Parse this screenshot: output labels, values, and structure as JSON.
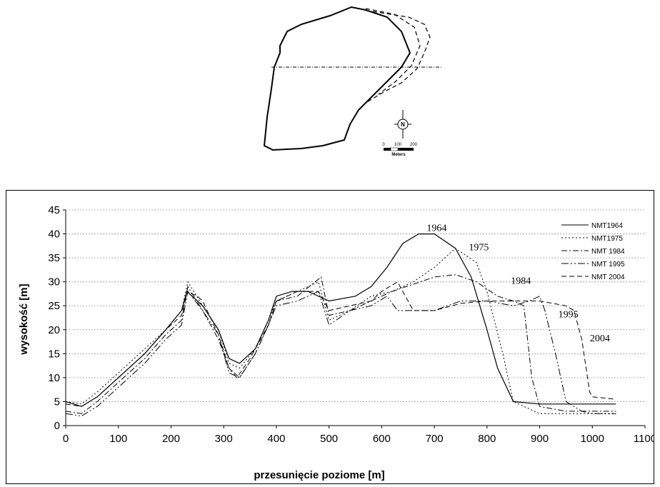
{
  "map": {
    "scale_labels": [
      "0",
      "100",
      "200"
    ],
    "scale_unit": "Meters",
    "north_label": "N"
  },
  "chart_data": {
    "type": "line",
    "xlabel": "przesunięcie poziome [m]",
    "ylabel": "wysokość [m]",
    "xlim": [
      0,
      1100
    ],
    "ylim": [
      0,
      45
    ],
    "xticks": [
      0,
      100,
      200,
      300,
      400,
      500,
      600,
      700,
      800,
      900,
      1000,
      1100
    ],
    "yticks": [
      0,
      5,
      10,
      15,
      20,
      25,
      30,
      35,
      40,
      45
    ],
    "grid": "horizontal dotted",
    "legend_position": "top-right",
    "series": [
      {
        "name": "NMT1964",
        "label": "1964",
        "dash": "none",
        "points": [
          [
            0,
            5
          ],
          [
            30,
            4
          ],
          [
            60,
            6
          ],
          [
            100,
            10
          ],
          [
            150,
            15
          ],
          [
            190,
            20
          ],
          [
            220,
            24
          ],
          [
            230,
            28
          ],
          [
            260,
            25
          ],
          [
            290,
            20
          ],
          [
            310,
            14
          ],
          [
            330,
            13
          ],
          [
            360,
            16
          ],
          [
            385,
            22
          ],
          [
            400,
            27
          ],
          [
            430,
            28
          ],
          [
            460,
            28
          ],
          [
            500,
            26
          ],
          [
            550,
            27
          ],
          [
            580,
            29
          ],
          [
            610,
            33
          ],
          [
            640,
            38
          ],
          [
            670,
            40
          ],
          [
            700,
            40
          ],
          [
            740,
            37
          ],
          [
            770,
            31
          ],
          [
            800,
            20
          ],
          [
            820,
            12
          ],
          [
            850,
            5
          ],
          [
            900,
            4.5
          ],
          [
            950,
            4.5
          ],
          [
            1000,
            4.5
          ],
          [
            1045,
            4.5
          ]
        ]
      },
      {
        "name": "NMT1975",
        "label": "1975",
        "dash": "2,3",
        "points": [
          [
            0,
            5
          ],
          [
            30,
            4.5
          ],
          [
            60,
            7
          ],
          [
            100,
            11
          ],
          [
            150,
            16
          ],
          [
            190,
            20
          ],
          [
            220,
            24
          ],
          [
            232,
            30
          ],
          [
            260,
            25
          ],
          [
            290,
            20
          ],
          [
            310,
            13
          ],
          [
            330,
            12
          ],
          [
            360,
            16
          ],
          [
            385,
            22
          ],
          [
            400,
            26
          ],
          [
            440,
            28
          ],
          [
            480,
            30
          ],
          [
            500,
            22
          ],
          [
            540,
            24
          ],
          [
            580,
            27
          ],
          [
            620,
            28
          ],
          [
            660,
            30
          ],
          [
            700,
            33
          ],
          [
            740,
            37
          ],
          [
            780,
            34
          ],
          [
            800,
            28
          ],
          [
            830,
            15
          ],
          [
            850,
            5
          ],
          [
            900,
            2.5
          ],
          [
            950,
            2.5
          ],
          [
            1000,
            2.5
          ],
          [
            1045,
            2.5
          ]
        ]
      },
      {
        "name": "NMT 1984",
        "label": "1984",
        "dash": "8,3,2,3",
        "points": [
          [
            0,
            3
          ],
          [
            30,
            2.5
          ],
          [
            60,
            5
          ],
          [
            100,
            9
          ],
          [
            150,
            14
          ],
          [
            190,
            19
          ],
          [
            220,
            22
          ],
          [
            232,
            29
          ],
          [
            260,
            24
          ],
          [
            290,
            18
          ],
          [
            310,
            12
          ],
          [
            330,
            10
          ],
          [
            360,
            15
          ],
          [
            385,
            21
          ],
          [
            400,
            26
          ],
          [
            440,
            27
          ],
          [
            485,
            31
          ],
          [
            500,
            23
          ],
          [
            540,
            24
          ],
          [
            580,
            26
          ],
          [
            620,
            28
          ],
          [
            660,
            29.5
          ],
          [
            700,
            31
          ],
          [
            740,
            31.5
          ],
          [
            780,
            30
          ],
          [
            820,
            27
          ],
          [
            850,
            26
          ],
          [
            870,
            25
          ],
          [
            885,
            10
          ],
          [
            900,
            4
          ],
          [
            950,
            3
          ],
          [
            1000,
            3
          ],
          [
            1045,
            3
          ]
        ]
      },
      {
        "name": "NMT 1995",
        "label": "1995",
        "dash": "10,3,2,3,2,3",
        "points": [
          [
            0,
            2.5
          ],
          [
            30,
            2
          ],
          [
            60,
            4
          ],
          [
            100,
            8
          ],
          [
            150,
            13
          ],
          [
            190,
            18
          ],
          [
            220,
            21
          ],
          [
            232,
            28
          ],
          [
            260,
            24
          ],
          [
            290,
            19
          ],
          [
            310,
            11
          ],
          [
            330,
            10
          ],
          [
            360,
            15
          ],
          [
            385,
            21
          ],
          [
            400,
            25
          ],
          [
            440,
            26
          ],
          [
            480,
            28
          ],
          [
            500,
            21
          ],
          [
            540,
            24
          ],
          [
            580,
            25
          ],
          [
            610,
            27
          ],
          [
            630,
            24
          ],
          [
            660,
            24
          ],
          [
            700,
            24
          ],
          [
            750,
            26
          ],
          [
            800,
            26
          ],
          [
            850,
            25
          ],
          [
            880,
            26
          ],
          [
            900,
            27
          ],
          [
            910,
            24
          ],
          [
            930,
            15
          ],
          [
            950,
            5
          ],
          [
            980,
            3
          ],
          [
            1000,
            2.5
          ],
          [
            1045,
            2.5
          ]
        ]
      },
      {
        "name": "NMT 2004",
        "label": "2004",
        "dash": "7,4",
        "points": [
          [
            0,
            4.5
          ],
          [
            30,
            4
          ],
          [
            60,
            6
          ],
          [
            100,
            10
          ],
          [
            150,
            15
          ],
          [
            190,
            20
          ],
          [
            220,
            23
          ],
          [
            230,
            28
          ],
          [
            250,
            27
          ],
          [
            260,
            26
          ],
          [
            290,
            19
          ],
          [
            310,
            12
          ],
          [
            325,
            10
          ],
          [
            350,
            14
          ],
          [
            385,
            21
          ],
          [
            400,
            26
          ],
          [
            440,
            28
          ],
          [
            480,
            28
          ],
          [
            500,
            24
          ],
          [
            540,
            25
          ],
          [
            580,
            26
          ],
          [
            600,
            28
          ],
          [
            630,
            30
          ],
          [
            660,
            24
          ],
          [
            700,
            24
          ],
          [
            750,
            25.5
          ],
          [
            800,
            26
          ],
          [
            850,
            26
          ],
          [
            900,
            26
          ],
          [
            950,
            25
          ],
          [
            965,
            24
          ],
          [
            980,
            18
          ],
          [
            995,
            7
          ],
          [
            1000,
            6
          ],
          [
            1045,
            5.5
          ]
        ]
      }
    ]
  }
}
